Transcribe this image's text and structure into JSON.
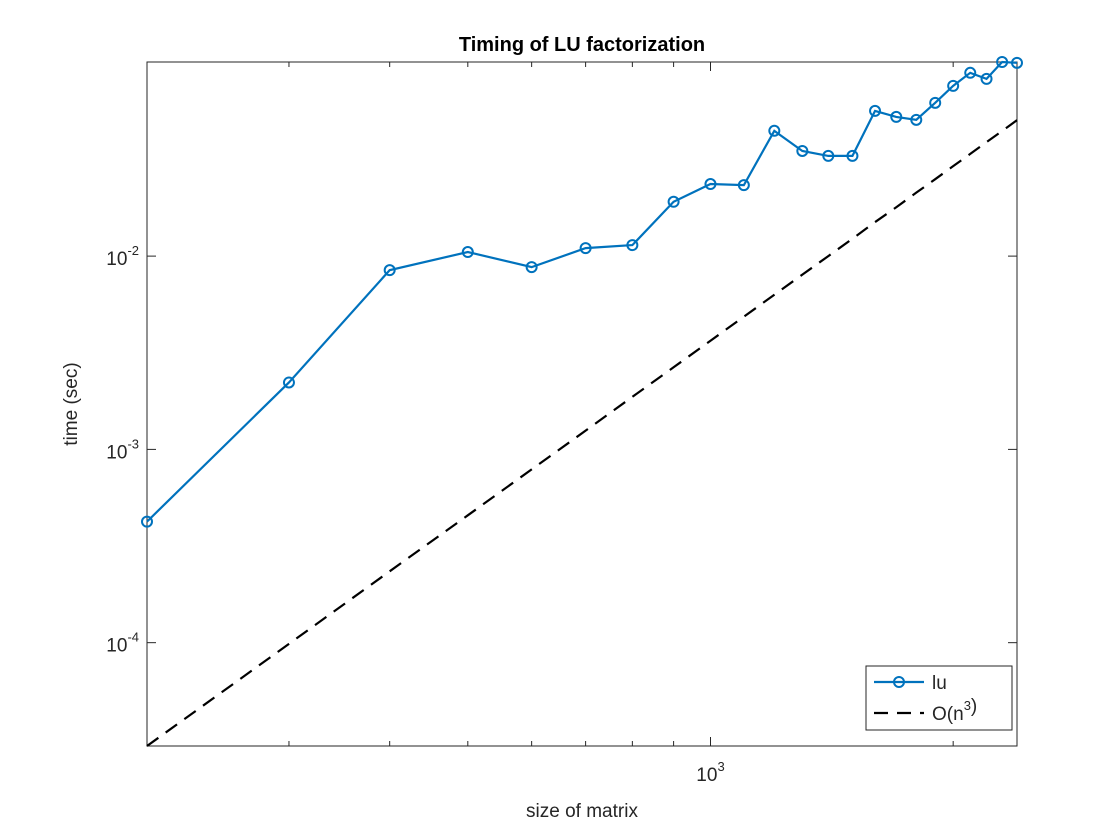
{
  "chart_data": {
    "type": "line",
    "title": "Timing of LU factorization",
    "xlabel": "size of matrix",
    "ylabel": "time (sec)",
    "xscale": "log",
    "yscale": "log",
    "x": [
      200,
      300,
      400,
      500,
      600,
      700,
      800,
      900,
      1000,
      1100,
      1200,
      1300,
      1400,
      1500,
      1600,
      1700,
      1800,
      1900,
      2000,
      2100,
      2200,
      2300,
      2400
    ],
    "series": [
      {
        "name": "lu",
        "color": "#0072bd",
        "style": "solid",
        "marker": "circle",
        "values": [
          0.000423,
          0.00222,
          0.00846,
          0.0105,
          0.00877,
          0.011,
          0.0114,
          0.0191,
          0.0236,
          0.0233,
          0.0445,
          0.035,
          0.033,
          0.033,
          0.0564,
          0.0525,
          0.0507,
          0.0621,
          0.076,
          0.0888,
          0.0826,
          0.101,
          0.1
        ]
      },
      {
        "name": "O(n^{3})",
        "color": "#000000",
        "style": "dashed",
        "marker": "none",
        "values": [
          2.92e-05,
          9.86e-05,
          0.000234,
          0.000456,
          0.000788,
          0.00125,
          0.00187,
          0.00266,
          0.00365,
          0.00486,
          0.00631,
          0.00802,
          0.01,
          0.0123,
          0.015,
          0.0179,
          0.0213,
          0.025,
          0.0292,
          0.0338,
          0.0389,
          0.0444,
          0.0505
        ]
      }
    ],
    "xlim": [
      200,
      2400
    ],
    "ylim": [
      2.92e-05,
      0.101
    ],
    "xticks": [
      {
        "value": 1000,
        "label": "10^{3}"
      }
    ],
    "xminorticks": [
      300,
      400,
      500,
      600,
      700,
      800,
      900,
      2000
    ],
    "yticks": [
      {
        "value": 0.0001,
        "label": "10^{-4}"
      },
      {
        "value": 0.001,
        "label": "10^{-3}"
      },
      {
        "value": 0.01,
        "label": "10^{-2}"
      }
    ],
    "grid": false,
    "legend": "southeast"
  }
}
